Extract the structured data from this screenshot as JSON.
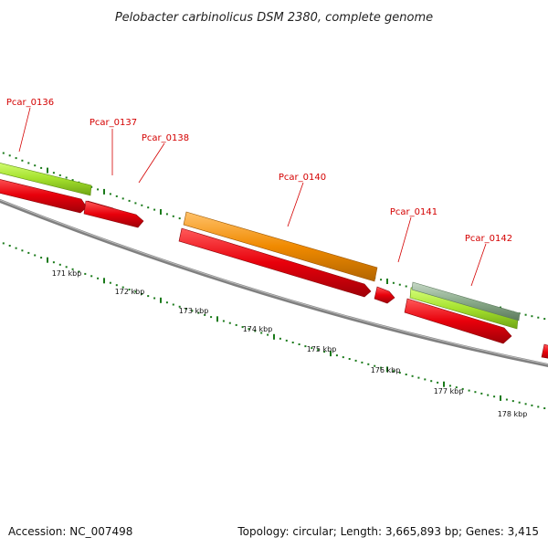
{
  "header": {
    "title": "Pelobacter carbinolicus DSM 2380, complete genome"
  },
  "footer": {
    "accession": "Accession: NC_007498",
    "summary": "Topology: circular; Length: 3,665,893 bp; Genes: 3,415"
  },
  "colors": {
    "forward_cds": "#e8000b",
    "forward_gene": "#a6e22e",
    "rrna_or_other": "#f08a00",
    "pseudo": "#8aab8a",
    "backbone": "#888888",
    "tick": "#1a7a1a",
    "label": "#d40000"
  },
  "genes": [
    {
      "label": "Pcar_0136"
    },
    {
      "label": "Pcar_0137"
    },
    {
      "label": "Pcar_0138"
    },
    {
      "label": "Pcar_0140"
    },
    {
      "label": "Pcar_0141"
    },
    {
      "label": "Pcar_0142"
    }
  ],
  "kbp_ticks": [
    {
      "label": "171 kbp"
    },
    {
      "label": "172 kbp"
    },
    {
      "label": "173 kbp"
    },
    {
      "label": "174 kbp"
    },
    {
      "label": "175 kbp"
    },
    {
      "label": "176 kbp"
    },
    {
      "label": "177 kbp"
    },
    {
      "label": "178 kbp"
    }
  ]
}
